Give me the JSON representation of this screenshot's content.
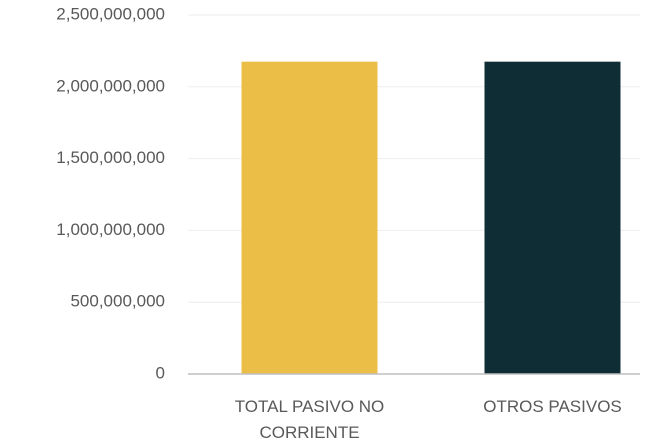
{
  "chart_data": {
    "type": "bar",
    "categories": [
      "TOTAL PASIVO NO CORRIENTE",
      "OTROS PASIVOS"
    ],
    "values": [
      2175000000,
      2175000000
    ],
    "colors": [
      "#ebbe48",
      "#0e2d35"
    ],
    "ylim": [
      0,
      2500000000
    ],
    "yticks": [
      0,
      {
        "value": 500000000,
        "label": "500,000,000"
      },
      {
        "value": 1000000000,
        "label": "1,000,000,000"
      },
      {
        "value": 1500000000,
        "label": "1,500,000,000"
      },
      {
        "value": 2000000000,
        "label": "2,000,000,000"
      },
      {
        "value": 2500000000,
        "label": "2,500,000,000"
      }
    ],
    "grid": true
  }
}
